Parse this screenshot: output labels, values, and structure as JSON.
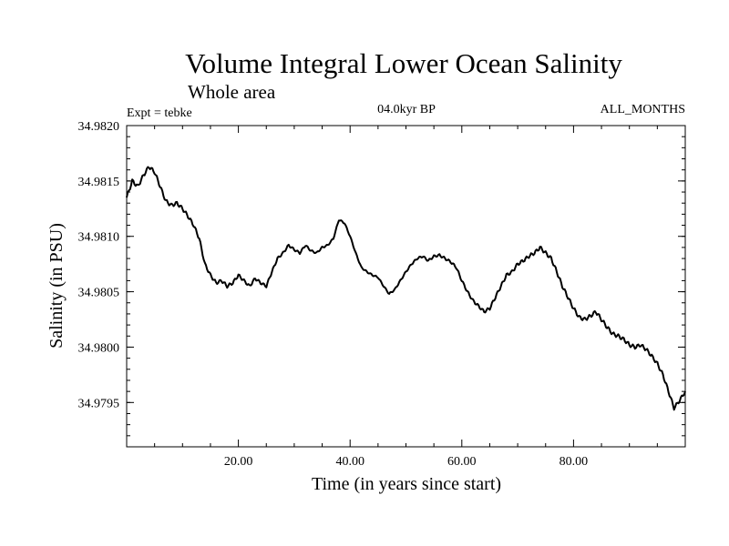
{
  "chart_data": {
    "type": "line",
    "title": "Volume Integral Lower Ocean Salinity",
    "subtitle": "Whole area",
    "expt": "Expt = tebke",
    "period": "04.0kyr BP",
    "months": "ALL_MONTHS",
    "xlabel": "Time (in years since start)",
    "ylabel": "Salinity (in PSU)",
    "xlim": [
      0,
      100
    ],
    "ylim": [
      34.9791,
      34.982
    ],
    "xticks": [
      20,
      40,
      60,
      80
    ],
    "xtick_labels": [
      "20.00",
      "40.00",
      "60.00",
      "80.00"
    ],
    "yticks": [
      34.9795,
      34.98,
      34.9805,
      34.981,
      34.9815,
      34.982
    ],
    "ytick_labels": [
      "34.9795",
      "34.9800",
      "34.9805",
      "34.9810",
      "34.9815",
      "34.9820"
    ],
    "grid": false,
    "series": [
      {
        "name": "Salinity",
        "color": "#000000",
        "x": [
          0,
          1,
          2,
          3,
          4,
          5,
          6,
          7,
          8,
          9,
          10,
          11,
          12,
          13,
          14,
          15,
          16,
          17,
          18,
          19,
          20,
          21,
          22,
          23,
          24,
          25,
          26,
          27,
          28,
          29,
          30,
          31,
          32,
          33,
          34,
          35,
          36,
          37,
          38,
          39,
          40,
          41,
          42,
          43,
          44,
          45,
          46,
          47,
          48,
          49,
          50,
          51,
          52,
          53,
          54,
          55,
          56,
          57,
          58,
          59,
          60,
          61,
          62,
          63,
          64,
          65,
          66,
          67,
          68,
          69,
          70,
          71,
          72,
          73,
          74,
          75,
          76,
          77,
          78,
          79,
          80,
          81,
          82,
          83,
          84,
          85,
          86,
          87,
          88,
          89,
          90,
          91,
          92,
          93,
          94,
          95,
          96,
          97,
          98,
          99,
          100
        ],
        "values": [
          34.98135,
          34.9815,
          34.98145,
          34.98155,
          34.98163,
          34.98158,
          34.98145,
          34.98132,
          34.98128,
          34.9813,
          34.98125,
          34.98118,
          34.9811,
          34.98098,
          34.98075,
          34.98065,
          34.98058,
          34.9806,
          34.98055,
          34.98058,
          34.98065,
          34.9806,
          34.98055,
          34.98062,
          34.98058,
          34.98055,
          34.98068,
          34.9808,
          34.98085,
          34.98092,
          34.98088,
          34.98085,
          34.98092,
          34.98087,
          34.98085,
          34.9809,
          34.98092,
          34.98098,
          34.98115,
          34.98112,
          34.981,
          34.98085,
          34.98072,
          34.98068,
          34.98065,
          34.98063,
          34.98055,
          34.98048,
          34.98052,
          34.9806,
          34.98068,
          34.98075,
          34.9808,
          34.98082,
          34.98078,
          34.98082,
          34.98083,
          34.9808,
          34.98077,
          34.98072,
          34.9806,
          34.9805,
          34.98042,
          34.98037,
          34.98032,
          34.98035,
          34.98045,
          34.98055,
          34.98065,
          34.98068,
          34.98075,
          34.98078,
          34.98082,
          34.98085,
          34.9809,
          34.98085,
          34.9808,
          34.98068,
          34.98055,
          34.98045,
          34.98035,
          34.98027,
          34.98025,
          34.98028,
          34.98032,
          34.98025,
          34.98018,
          34.98012,
          34.9801,
          34.98007,
          34.98002,
          34.98,
          34.98002,
          34.97998,
          34.97992,
          34.97985,
          34.97975,
          34.9796,
          34.97945,
          34.97952,
          34.9796
        ]
      }
    ]
  }
}
